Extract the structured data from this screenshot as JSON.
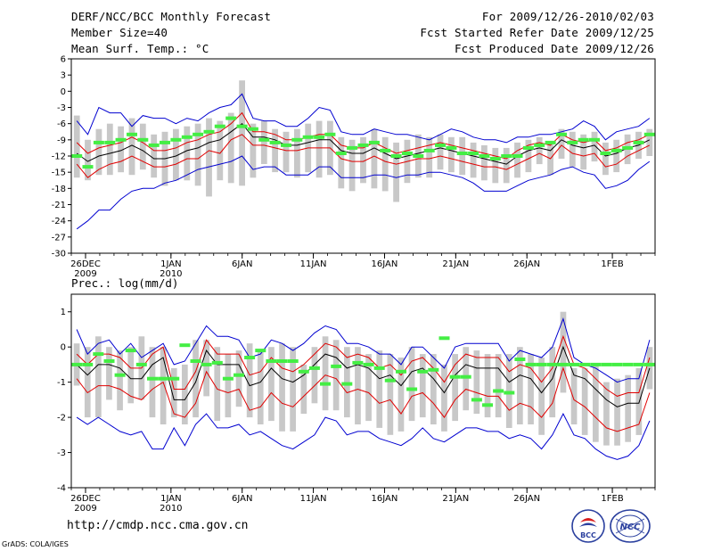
{
  "header": {
    "title": "DERF/NCC/BCC Monthly Forecast",
    "member_size": "Member Size=40",
    "variable": "Mean Surf. Temp.: °C",
    "for_range": "For 2009/12/26-2010/02/03",
    "started": "Fcst Started Refer Date 2009/12/25",
    "produced": "Fcst Produced Date 2009/12/26"
  },
  "footer": {
    "url": "http://cmdp.ncc.cma.gov.cn",
    "grads": "GrADS: COLA/IGES",
    "logo_left_text": "BCC",
    "logo_right_text": "NCC"
  },
  "colors": {
    "mean": "#000000",
    "std_band": "#e00000",
    "extreme": "#0000d0",
    "box": "#c8c8c8",
    "marker": "#44ee44"
  },
  "chart_data": [
    {
      "type": "box-ensemble",
      "title": "",
      "ylabel": "Mean Surf. Temp.: °C",
      "ylim": [
        -30,
        6
      ],
      "yticks": [
        6,
        3,
        0,
        -3,
        -6,
        -9,
        -12,
        -15,
        -18,
        -21,
        -24,
        -27,
        -30
      ],
      "x_tick_days": [
        0,
        6,
        11,
        16,
        21,
        26,
        31,
        37
      ],
      "x_tick_labels": [
        "26DEC",
        "1JAN",
        "6JAN",
        "11JAN",
        "16JAN",
        "21JAN",
        "26JAN",
        "1FEB"
      ],
      "x_tick_sublabels": [
        "2009",
        "2010",
        "",
        "",
        "",
        "",
        "",
        ""
      ],
      "x_range_days": [
        -1,
        40
      ],
      "mean": [
        -11.5,
        -13.0,
        -12.0,
        -11.5,
        -11.0,
        -10.0,
        -11.0,
        -12.5,
        -12.5,
        -12.0,
        -11.0,
        -10.5,
        -9.5,
        -9.0,
        -7.5,
        -6.0,
        -8.5,
        -8.5,
        -9.0,
        -10.0,
        -10.0,
        -9.5,
        -9.0,
        -9.0,
        -11.0,
        -11.5,
        -11.5,
        -10.5,
        -11.5,
        -12.5,
        -12.0,
        -11.5,
        -11.0,
        -10.5,
        -11.0,
        -11.5,
        -12.0,
        -12.5,
        -13.0,
        -13.5,
        -12.0,
        -11.0,
        -10.5,
        -11.0,
        -9.0,
        -10.0,
        -10.5,
        -10.0,
        -12.0,
        -11.5,
        -10.5,
        -10.0,
        -9.0
      ],
      "upper": [
        -9.5,
        -11.5,
        -10.5,
        -10.0,
        -9.5,
        -8.5,
        -9.5,
        -11.0,
        -11.0,
        -10.5,
        -9.5,
        -9.0,
        -8.0,
        -7.5,
        -6.0,
        -4.0,
        -7.5,
        -7.5,
        -8.0,
        -9.0,
        -9.0,
        -8.5,
        -8.0,
        -8.0,
        -10.0,
        -10.5,
        -10.5,
        -9.5,
        -10.5,
        -11.5,
        -11.0,
        -10.5,
        -10.0,
        -9.5,
        -10.0,
        -10.5,
        -11.0,
        -11.5,
        -12.0,
        -12.5,
        -11.0,
        -10.0,
        -9.5,
        -10.0,
        -8.0,
        -9.0,
        -9.5,
        -9.0,
        -11.0,
        -10.5,
        -9.5,
        -9.0,
        -8.0
      ],
      "lower": [
        -13.5,
        -16.0,
        -14.5,
        -13.5,
        -13.0,
        -12.0,
        -13.0,
        -14.0,
        -14.0,
        -13.5,
        -12.5,
        -12.5,
        -11.0,
        -11.5,
        -9.0,
        -8.0,
        -10.0,
        -10.0,
        -10.5,
        -11.0,
        -11.0,
        -10.5,
        -10.5,
        -10.5,
        -12.5,
        -13.0,
        -13.0,
        -12.0,
        -13.0,
        -13.5,
        -13.0,
        -12.5,
        -12.5,
        -12.0,
        -12.5,
        -13.0,
        -13.5,
        -14.0,
        -14.0,
        -14.5,
        -13.5,
        -12.5,
        -11.5,
        -12.5,
        -10.0,
        -11.5,
        -12.0,
        -11.5,
        -14.0,
        -13.5,
        -12.0,
        -11.0,
        -10.0
      ],
      "max": [
        -5.5,
        -8.0,
        -3.0,
        -4.0,
        -4.0,
        -6.5,
        -4.5,
        -5.0,
        -5.0,
        -6.0,
        -5.0,
        -5.5,
        -4.0,
        -3.0,
        -2.5,
        -0.5,
        -5.0,
        -5.5,
        -5.5,
        -6.5,
        -6.5,
        -5.0,
        -3.0,
        -3.5,
        -7.5,
        -8.0,
        -8.0,
        -7.0,
        -7.5,
        -8.0,
        -8.0,
        -8.5,
        -9.0,
        -8.0,
        -7.0,
        -7.5,
        -8.5,
        -9.0,
        -9.0,
        -9.5,
        -8.5,
        -8.5,
        -8.0,
        -8.0,
        -7.5,
        -7.0,
        -5.5,
        -6.5,
        -9.0,
        -7.5,
        -7.0,
        -6.5,
        -5.0
      ],
      "min": [
        -25.5,
        -24.0,
        -22.0,
        -22.0,
        -20.0,
        -18.5,
        -18.0,
        -18.0,
        -17.0,
        -16.5,
        -15.5,
        -14.5,
        -14.0,
        -13.5,
        -13.0,
        -12.0,
        -14.5,
        -14.0,
        -14.0,
        -15.5,
        -15.5,
        -15.5,
        -14.0,
        -14.0,
        -16.0,
        -16.0,
        -16.0,
        -15.5,
        -15.5,
        -16.0,
        -15.5,
        -15.5,
        -15.0,
        -15.0,
        -15.5,
        -16.0,
        -17.0,
        -18.5,
        -18.5,
        -18.5,
        -17.5,
        -16.5,
        -16.0,
        -15.5,
        -14.5,
        -14.0,
        -15.0,
        -15.5,
        -18.0,
        -17.5,
        -16.5,
        -14.5,
        -13.0
      ],
      "box_top": [
        -4.5,
        -9.0,
        -7.0,
        -6.0,
        -6.5,
        -5.0,
        -6.0,
        -8.0,
        -7.5,
        -7.0,
        -6.5,
        -6.0,
        -5.0,
        -5.5,
        -4.0,
        2.0,
        -6.0,
        -5.5,
        -7.0,
        -7.5,
        -7.0,
        -6.0,
        -5.5,
        -5.5,
        -8.5,
        -9.0,
        -8.5,
        -7.0,
        -8.5,
        -9.5,
        -9.0,
        -8.0,
        -8.5,
        -8.0,
        -8.5,
        -8.5,
        -9.5,
        -10.0,
        -10.5,
        -10.5,
        -9.5,
        -9.0,
        -8.5,
        -9.5,
        -7.0,
        -7.5,
        -8.0,
        -7.5,
        -9.5,
        -9.0,
        -8.0,
        -7.5,
        -7.0
      ],
      "box_bottom": [
        -16.0,
        -16.5,
        -15.5,
        -15.5,
        -15.0,
        -15.5,
        -14.5,
        -16.0,
        -17.5,
        -16.5,
        -16.5,
        -17.5,
        -19.5,
        -16.5,
        -17.0,
        -17.5,
        -16.0,
        -13.5,
        -15.0,
        -15.0,
        -16.0,
        -15.0,
        -16.0,
        -15.5,
        -18.0,
        -18.5,
        -17.0,
        -18.0,
        -18.5,
        -20.5,
        -17.0,
        -16.0,
        -16.0,
        -14.5,
        -15.0,
        -15.5,
        -16.0,
        -16.5,
        -17.0,
        -17.0,
        -16.0,
        -15.0,
        -13.5,
        -15.5,
        -12.5,
        -14.0,
        -14.5,
        -13.0,
        -15.5,
        -15.0,
        -13.5,
        -12.5,
        -12.0
      ],
      "marker": [
        -12.0,
        -14.0,
        -9.5,
        -9.5,
        -9.0,
        -8.0,
        -9.0,
        -10.0,
        -9.5,
        -9.0,
        -8.5,
        -8.0,
        -7.5,
        -6.5,
        -5.0,
        -6.5,
        -7.0,
        -9.0,
        -9.5,
        -10.0,
        -9.0,
        -8.5,
        -8.5,
        -8.0,
        -11.5,
        -10.5,
        -10.0,
        -9.5,
        -11.0,
        -12.0,
        -11.5,
        -12.0,
        -11.0,
        -10.0,
        -10.5,
        -11.5,
        -11.5,
        -12.0,
        -12.5,
        -12.0,
        -12.0,
        -10.5,
        -10.0,
        -9.5,
        -8.0,
        -9.5,
        -9.0,
        -9.0,
        -11.5,
        -11.0,
        -10.5,
        -9.5,
        -8.0
      ]
    },
    {
      "type": "box-ensemble",
      "title": "Prec.: log(mm/d)",
      "ylabel": "Prec.: log(mm/d)",
      "ylim": [
        -4,
        1.5
      ],
      "yticks": [
        1,
        0,
        -1,
        -2,
        -3,
        -4
      ],
      "x_tick_days": [
        0,
        6,
        11,
        16,
        21,
        26,
        31,
        37
      ],
      "x_tick_labels": [
        "26DEC",
        "1JAN",
        "6JAN",
        "11JAN",
        "16JAN",
        "21JAN",
        "26JAN",
        "1FEB"
      ],
      "x_tick_sublabels": [
        "2009",
        "2010",
        "",
        "",
        "",
        "",
        "",
        ""
      ],
      "x_range_days": [
        -1,
        40
      ],
      "mean": [
        -0.5,
        -0.8,
        -0.5,
        -0.5,
        -0.6,
        -0.9,
        -0.9,
        -0.5,
        -0.3,
        -1.5,
        -1.5,
        -1.0,
        -0.1,
        -0.5,
        -0.5,
        -0.5,
        -1.1,
        -1.0,
        -0.6,
        -0.9,
        -1.0,
        -0.8,
        -0.5,
        -0.2,
        -0.3,
        -0.6,
        -0.5,
        -0.6,
        -0.9,
        -0.8,
        -1.1,
        -0.7,
        -0.6,
        -0.9,
        -1.3,
        -0.8,
        -0.5,
        -0.6,
        -0.6,
        -0.6,
        -1.0,
        -0.8,
        -0.9,
        -1.3,
        -0.9,
        0.0,
        -0.8,
        -0.9,
        -1.2,
        -1.5,
        -1.7,
        -1.6,
        -1.6,
        -0.6
      ],
      "upper": [
        -0.2,
        -0.5,
        -0.2,
        -0.2,
        -0.3,
        -0.6,
        -0.6,
        -0.2,
        0.0,
        -1.2,
        -1.2,
        -0.7,
        0.2,
        -0.2,
        -0.2,
        -0.2,
        -0.8,
        -0.7,
        -0.3,
        -0.6,
        -0.7,
        -0.5,
        -0.2,
        0.1,
        0.0,
        -0.3,
        -0.2,
        -0.3,
        -0.6,
        -0.5,
        -0.8,
        -0.4,
        -0.3,
        -0.6,
        -1.0,
        -0.5,
        -0.2,
        -0.3,
        -0.3,
        -0.3,
        -0.7,
        -0.5,
        -0.6,
        -1.0,
        -0.6,
        0.3,
        -0.5,
        -0.6,
        -0.9,
        -1.2,
        -1.4,
        -1.3,
        -1.3,
        -0.3
      ],
      "lower": [
        -0.9,
        -1.3,
        -1.1,
        -1.1,
        -1.2,
        -1.4,
        -1.5,
        -1.2,
        -1.0,
        -1.9,
        -2.0,
        -1.6,
        -0.7,
        -1.2,
        -1.3,
        -1.2,
        -1.8,
        -1.7,
        -1.3,
        -1.6,
        -1.7,
        -1.4,
        -1.1,
        -0.8,
        -0.9,
        -1.3,
        -1.2,
        -1.3,
        -1.6,
        -1.5,
        -1.9,
        -1.4,
        -1.3,
        -1.6,
        -2.0,
        -1.5,
        -1.2,
        -1.3,
        -1.4,
        -1.4,
        -1.8,
        -1.6,
        -1.7,
        -2.0,
        -1.6,
        -0.6,
        -1.5,
        -1.7,
        -2.0,
        -2.3,
        -2.4,
        -2.3,
        -2.2,
        -1.3
      ],
      "max": [
        0.5,
        -0.2,
        0.1,
        0.2,
        -0.2,
        0.1,
        -0.3,
        -0.1,
        0.1,
        -0.5,
        -0.4,
        0.1,
        0.6,
        0.3,
        0.3,
        0.2,
        -0.3,
        -0.2,
        0.2,
        0.1,
        -0.1,
        0.1,
        0.4,
        0.6,
        0.5,
        0.1,
        0.1,
        0.0,
        -0.2,
        -0.2,
        -0.5,
        0.0,
        0.0,
        -0.3,
        -0.6,
        0.0,
        0.1,
        0.1,
        0.1,
        0.1,
        -0.4,
        -0.1,
        -0.2,
        -0.3,
        0.0,
        0.8,
        -0.3,
        -0.5,
        -0.6,
        -0.8,
        -1.0,
        -0.9,
        -0.9,
        0.2
      ],
      "min": [
        -2.0,
        -2.2,
        -2.0,
        -2.2,
        -2.4,
        -2.5,
        -2.4,
        -2.9,
        -2.9,
        -2.3,
        -2.8,
        -2.2,
        -1.9,
        -2.3,
        -2.3,
        -2.2,
        -2.5,
        -2.4,
        -2.6,
        -2.8,
        -2.9,
        -2.7,
        -2.5,
        -2.0,
        -2.1,
        -2.5,
        -2.4,
        -2.4,
        -2.6,
        -2.7,
        -2.8,
        -2.6,
        -2.3,
        -2.6,
        -2.7,
        -2.5,
        -2.3,
        -2.3,
        -2.4,
        -2.4,
        -2.6,
        -2.5,
        -2.6,
        -2.9,
        -2.5,
        -1.9,
        -2.5,
        -2.6,
        -2.9,
        -3.1,
        -3.2,
        -3.1,
        -2.8,
        -2.1
      ],
      "box_top": [
        0.1,
        0.0,
        0.3,
        0.0,
        -0.1,
        0.0,
        0.3,
        0.0,
        0.0,
        -0.6,
        -0.5,
        0.2,
        0.2,
        0.0,
        -0.2,
        -0.1,
        0.1,
        -0.1,
        0.0,
        0.1,
        0.0,
        -0.5,
        0.0,
        0.3,
        0.2,
        0.0,
        0.0,
        -0.2,
        -0.1,
        -0.2,
        -0.3,
        0.0,
        -0.2,
        -0.2,
        -0.5,
        -0.2,
        0.0,
        -0.1,
        -0.2,
        -0.2,
        -0.2,
        0.0,
        -0.2,
        -0.3,
        0.0,
        1.0,
        -0.6,
        -0.6,
        -0.5,
        -1.0,
        -0.9,
        -0.8,
        -0.6,
        0.0
      ],
      "box_bottom": [
        -1.1,
        -2.0,
        -2.0,
        -1.5,
        -1.8,
        -1.6,
        -1.5,
        -2.0,
        -2.2,
        -2.0,
        -2.2,
        -2.0,
        -1.4,
        -2.1,
        -2.0,
        -1.7,
        -2.0,
        -2.2,
        -2.1,
        -2.4,
        -2.4,
        -1.9,
        -1.6,
        -1.8,
        -1.8,
        -2.0,
        -2.2,
        -2.1,
        -2.3,
        -2.5,
        -2.4,
        -2.1,
        -2.0,
        -2.2,
        -2.4,
        -2.1,
        -1.8,
        -1.9,
        -2.0,
        -2.0,
        -2.3,
        -2.2,
        -2.2,
        -2.5,
        -2.0,
        -1.3,
        -2.2,
        -2.5,
        -2.7,
        -2.8,
        -2.8,
        -2.7,
        -2.5,
        -1.2
      ],
      "marker": [
        -0.5,
        -0.5,
        -0.2,
        -0.4,
        -0.8,
        -0.1,
        -0.5,
        -0.9,
        -0.9,
        -0.9,
        0.05,
        -0.4,
        -0.5,
        -0.45,
        -0.9,
        -0.8,
        -0.3,
        -0.1,
        -0.4,
        -0.4,
        -0.4,
        -0.7,
        -0.6,
        -1.05,
        -0.55,
        -1.05,
        -0.45,
        -0.5,
        -0.6,
        -0.95,
        -0.7,
        -1.2,
        -0.7,
        -0.65,
        0.25,
        -0.85,
        -0.85,
        -1.5,
        -1.65,
        -1.25,
        -1.3,
        -0.35,
        -0.5,
        -0.5,
        -0.5,
        -0.5,
        -0.5,
        -0.5,
        -0.5,
        -0.5,
        -0.5,
        -0.5,
        -0.5,
        -0.5
      ]
    }
  ]
}
